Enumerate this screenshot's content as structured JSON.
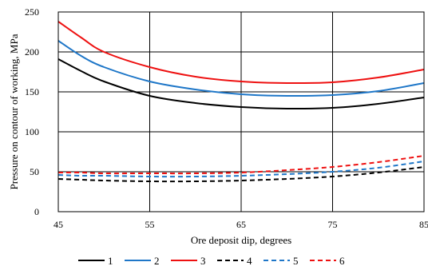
{
  "chart_data": {
    "type": "line",
    "title": "",
    "xlabel": "Ore deposit dip, degrees",
    "ylabel": "Pressure on contour of working, MPa",
    "xlim": [
      45,
      85
    ],
    "ylim": [
      0,
      250
    ],
    "x_ticks": [
      45,
      55,
      65,
      75,
      85
    ],
    "y_ticks": [
      0,
      50,
      100,
      150,
      200,
      250
    ],
    "grid": true,
    "legend_position": "bottom",
    "x": [
      45,
      47.5,
      50,
      55,
      60,
      65,
      70,
      75,
      80,
      85
    ],
    "series": [
      {
        "name": "1",
        "color": "#000000",
        "dash": "solid",
        "values": [
          191,
          176,
          163,
          145,
          136,
          131,
          129,
          130,
          135,
          143
        ]
      },
      {
        "name": "2",
        "color": "#1f77c8",
        "dash": "solid",
        "values": [
          214,
          195,
          181,
          163,
          153,
          147,
          145,
          146,
          151,
          161
        ]
      },
      {
        "name": "3",
        "color": "#ee1111",
        "dash": "solid",
        "values": [
          238,
          218,
          200,
          181,
          169,
          163,
          161,
          162,
          168,
          178
        ]
      },
      {
        "name": "4",
        "color": "#000000",
        "dash": "dashed",
        "values": [
          41,
          40,
          39,
          38,
          38,
          39,
          41,
          44,
          49,
          56
        ]
      },
      {
        "name": "5",
        "color": "#1f77c8",
        "dash": "dashed",
        "values": [
          46,
          45,
          45,
          44,
          44,
          45,
          47,
          50,
          55,
          63
        ]
      },
      {
        "name": "6",
        "color": "#ee1111",
        "dash": "dashed",
        "values": [
          49,
          49,
          48,
          48,
          48,
          49,
          52,
          56,
          62,
          70
        ]
      }
    ]
  }
}
